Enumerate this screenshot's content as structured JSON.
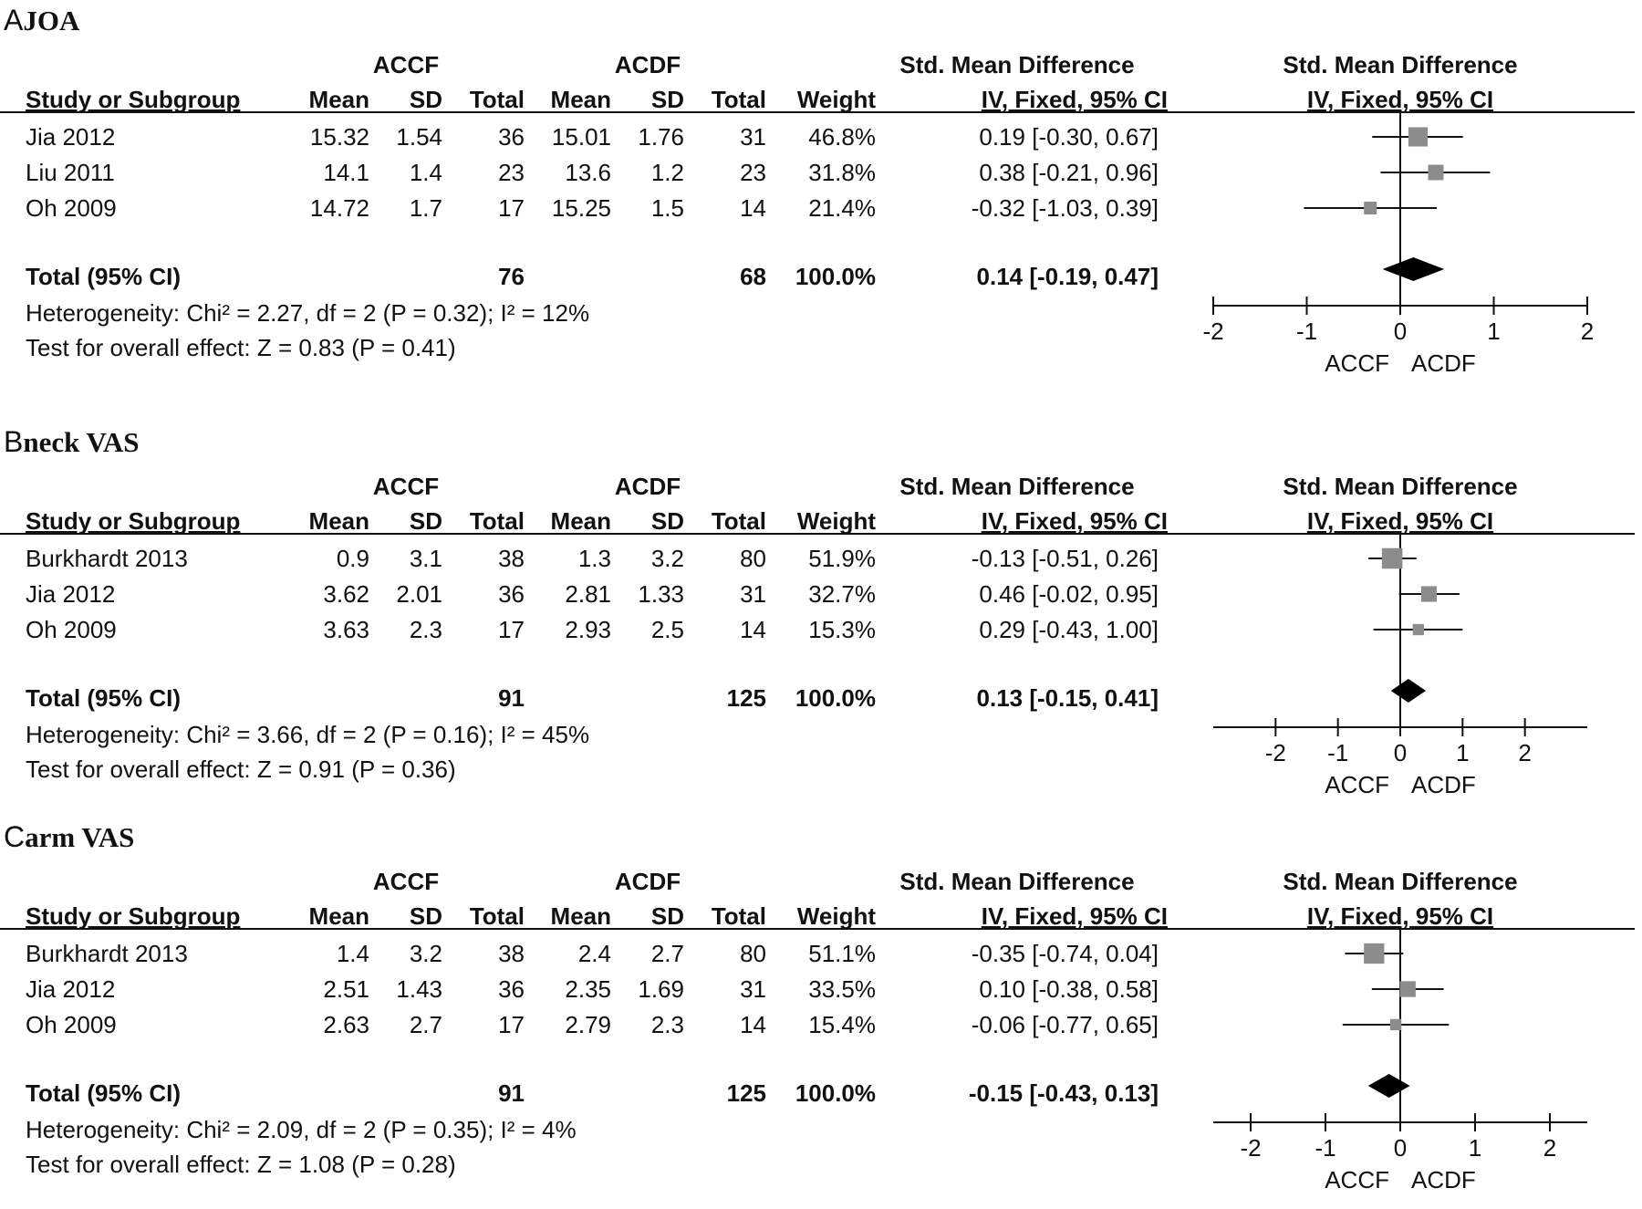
{
  "columns": {
    "study": "Study or Subgroup",
    "group1": "ACCF",
    "group2": "ACDF",
    "mean": "Mean",
    "sd": "SD",
    "total": "Total",
    "weight": "Weight",
    "effect_header": "Std. Mean Difference",
    "effect_method": "IV, Fixed, 95% CI"
  },
  "panels": [
    {
      "letter": "A",
      "name": "JOA",
      "rows": [
        {
          "study": "Jia 2012",
          "m1": "15.32",
          "sd1": "1.54",
          "n1": "36",
          "m2": "15.01",
          "sd2": "1.76",
          "n2": "31",
          "weight": "46.8%",
          "ci": "0.19 [-0.30, 0.67]"
        },
        {
          "study": "Liu 2011",
          "m1": "14.1",
          "sd1": "1.4",
          "n1": "23",
          "m2": "13.6",
          "sd2": "1.2",
          "n2": "23",
          "weight": "31.8%",
          "ci": "0.38 [-0.21, 0.96]"
        },
        {
          "study": "Oh 2009",
          "m1": "14.72",
          "sd1": "1.7",
          "n1": "17",
          "m2": "15.25",
          "sd2": "1.5",
          "n2": "14",
          "weight": "21.4%",
          "ci": "-0.32 [-1.03, 0.39]"
        }
      ],
      "total": {
        "label": "Total (95% CI)",
        "n1": "76",
        "n2": "68",
        "weight": "100.0%",
        "ci": "0.14 [-0.19, 0.47]"
      },
      "heterogeneity": "Heterogeneity: Chi² = 2.27, df = 2 (P = 0.32); I² = 12%",
      "overall": "Test for overall effect: Z = 0.83 (P = 0.41)"
    },
    {
      "letter": "B",
      "name": "neck VAS",
      "rows": [
        {
          "study": "Burkhardt 2013",
          "m1": "0.9",
          "sd1": "3.1",
          "n1": "38",
          "m2": "1.3",
          "sd2": "3.2",
          "n2": "80",
          "weight": "51.9%",
          "ci": "-0.13 [-0.51, 0.26]"
        },
        {
          "study": "Jia 2012",
          "m1": "3.62",
          "sd1": "2.01",
          "n1": "36",
          "m2": "2.81",
          "sd2": "1.33",
          "n2": "31",
          "weight": "32.7%",
          "ci": "0.46 [-0.02, 0.95]"
        },
        {
          "study": "Oh 2009",
          "m1": "3.63",
          "sd1": "2.3",
          "n1": "17",
          "m2": "2.93",
          "sd2": "2.5",
          "n2": "14",
          "weight": "15.3%",
          "ci": "0.29 [-0.43, 1.00]"
        }
      ],
      "total": {
        "label": "Total (95% CI)",
        "n1": "91",
        "n2": "125",
        "weight": "100.0%",
        "ci": "0.13 [-0.15, 0.41]"
      },
      "heterogeneity": "Heterogeneity: Chi² = 3.66, df = 2 (P = 0.16); I² = 45%",
      "overall": "Test for overall effect: Z = 0.91 (P = 0.36)"
    },
    {
      "letter": "C",
      "name": "arm VAS",
      "rows": [
        {
          "study": "Burkhardt 2013",
          "m1": "1.4",
          "sd1": "3.2",
          "n1": "38",
          "m2": "2.4",
          "sd2": "2.7",
          "n2": "80",
          "weight": "51.1%",
          "ci": "-0.35 [-0.74, 0.04]"
        },
        {
          "study": "Jia 2012",
          "m1": "2.51",
          "sd1": "1.43",
          "n1": "36",
          "m2": "2.35",
          "sd2": "1.69",
          "n2": "31",
          "weight": "33.5%",
          "ci": "0.10 [-0.38, 0.58]"
        },
        {
          "study": "Oh 2009",
          "m1": "2.63",
          "sd1": "2.7",
          "n1": "17",
          "m2": "2.79",
          "sd2": "2.3",
          "n2": "14",
          "weight": "15.4%",
          "ci": "-0.06 [-0.77, 0.65]"
        }
      ],
      "total": {
        "label": "Total (95% CI)",
        "n1": "91",
        "n2": "125",
        "weight": "100.0%",
        "ci": "-0.15 [-0.43, 0.13]"
      },
      "heterogeneity": "Heterogeneity: Chi² = 2.09, df = 2 (P = 0.35); I² = 4%",
      "overall": "Test for overall effect: Z = 1.08 (P = 0.28)"
    }
  ],
  "chart_data": [
    {
      "type": "forest",
      "title": "JOA",
      "xlim": [
        -2,
        2
      ],
      "xticks": [
        "-2",
        "-1",
        "0",
        "1",
        "2"
      ],
      "favours_left": "ACCF",
      "favours_right": "ACDF",
      "studies": [
        {
          "name": "Jia 2012",
          "est": 0.19,
          "lo": -0.3,
          "hi": 0.67,
          "weight": 46.8
        },
        {
          "name": "Liu 2011",
          "est": 0.38,
          "lo": -0.21,
          "hi": 0.96,
          "weight": 31.8
        },
        {
          "name": "Oh 2009",
          "est": -0.32,
          "lo": -1.03,
          "hi": 0.39,
          "weight": 21.4
        }
      ],
      "pooled": {
        "est": 0.14,
        "lo": -0.19,
        "hi": 0.47
      },
      "colors": {
        "study_marker": "#8c8c8c",
        "pooled": "#000000"
      }
    },
    {
      "type": "forest",
      "title": "neck VAS",
      "xlim": [
        -3,
        3
      ],
      "xticks": [
        "-2",
        "-1",
        "0",
        "1",
        "2"
      ],
      "favours_left": "ACCF",
      "favours_right": "ACDF",
      "studies": [
        {
          "name": "Burkhardt 2013",
          "est": -0.13,
          "lo": -0.51,
          "hi": 0.26,
          "weight": 51.9
        },
        {
          "name": "Jia 2012",
          "est": 0.46,
          "lo": -0.02,
          "hi": 0.95,
          "weight": 32.7
        },
        {
          "name": "Oh 2009",
          "est": 0.29,
          "lo": -0.43,
          "hi": 1.0,
          "weight": 15.3
        }
      ],
      "pooled": {
        "est": 0.13,
        "lo": -0.15,
        "hi": 0.41
      },
      "colors": {
        "study_marker": "#8c8c8c",
        "pooled": "#000000"
      }
    },
    {
      "type": "forest",
      "title": "arm VAS",
      "xlim": [
        -2.5,
        2.5
      ],
      "xticks": [
        "-2",
        "-1",
        "0",
        "1",
        "2"
      ],
      "favours_left": "ACCF",
      "favours_right": "ACDF",
      "studies": [
        {
          "name": "Burkhardt 2013",
          "est": -0.35,
          "lo": -0.74,
          "hi": 0.04,
          "weight": 51.1
        },
        {
          "name": "Jia 2012",
          "est": 0.1,
          "lo": -0.38,
          "hi": 0.58,
          "weight": 33.5
        },
        {
          "name": "Oh 2009",
          "est": -0.06,
          "lo": -0.77,
          "hi": 0.65,
          "weight": 15.4
        }
      ],
      "pooled": {
        "est": -0.15,
        "lo": -0.43,
        "hi": 0.13
      },
      "colors": {
        "study_marker": "#8c8c8c",
        "pooled": "#000000"
      }
    }
  ]
}
